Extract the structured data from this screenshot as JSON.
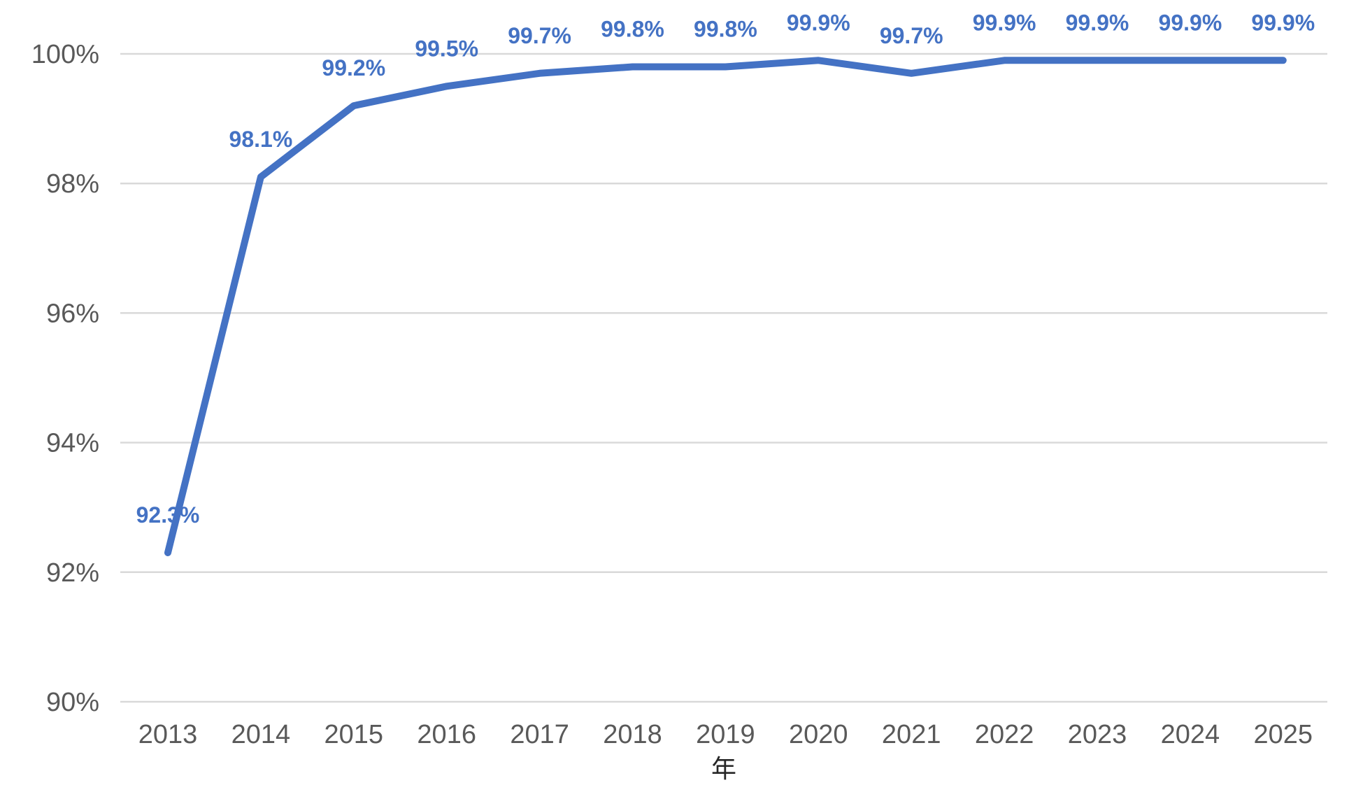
{
  "chart_data": {
    "type": "line",
    "x_categories": [
      "2013",
      "2014",
      "2015",
      "2016",
      "2017",
      "2018",
      "2019",
      "2020",
      "2021",
      "2022",
      "2023",
      "2024",
      "2025"
    ],
    "series": [
      {
        "name": "percentage",
        "values": [
          92.3,
          98.1,
          99.2,
          99.5,
          99.7,
          99.8,
          99.8,
          99.9,
          99.7,
          99.9,
          99.9,
          99.9,
          99.9
        ],
        "point_labels": [
          "92.3%",
          "98.1%",
          "99.2%",
          "99.5%",
          "99.7%",
          "99.8%",
          "99.8%",
          "99.9%",
          "99.7%",
          "99.9%",
          "99.9%",
          "99.9%",
          "99.9%"
        ]
      }
    ],
    "title": "",
    "xlabel": "年",
    "ylabel": "",
    "ylim": [
      90,
      100
    ],
    "yticks": [
      100,
      98,
      96,
      94,
      92,
      90
    ],
    "ytick_labels": [
      "100%",
      "98%",
      "96%",
      "94%",
      "92%",
      "90%"
    ],
    "grid": true,
    "legend_position": "none",
    "colors": {
      "line": "#4472C4",
      "data_label": "#4472C4",
      "axis_text": "#595959",
      "gridline": "#D9D9D9",
      "axis_title_text": "#262626",
      "background": "#FFFFFF"
    }
  }
}
